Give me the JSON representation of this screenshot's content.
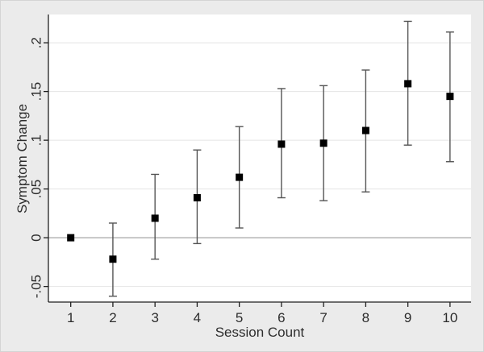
{
  "figure": {
    "type": "coefficient-plot"
  },
  "colors": {
    "background": "#ebebeb",
    "plot_background": "#ffffff",
    "gridline": "#e4e4e4",
    "zero_line": "#a6a6a6",
    "axis": "#1f1f1f",
    "error_bar": "#545454",
    "marker": "#000000",
    "text": "#2d2d2d"
  },
  "chart_data": {
    "type": "scatter",
    "subtype": "point-estimates-with-confidence-intervals",
    "title": "",
    "xlabel": "Session Count",
    "ylabel": "Symptom Change",
    "x": [
      1,
      2,
      3,
      4,
      5,
      6,
      7,
      8,
      9,
      10
    ],
    "x_tick_labels": [
      "1",
      "2",
      "3",
      "4",
      "5",
      "6",
      "7",
      "8",
      "9",
      "10"
    ],
    "y_ticks": [
      {
        "value": 0.2,
        "label": ".2"
      },
      {
        "value": 0.15,
        "label": ".15"
      },
      {
        "value": 0.1,
        "label": ".1"
      },
      {
        "value": 0.05,
        "label": ".05"
      },
      {
        "value": 0,
        "label": "0"
      },
      {
        "value": -0.05,
        "label": "-.05"
      }
    ],
    "series": [
      {
        "name": "Symptom Change estimate",
        "marker": "square",
        "values": [
          0,
          -0.022,
          0.02,
          0.041,
          0.062,
          0.096,
          0.097,
          0.11,
          0.158,
          0.145
        ],
        "ci_low": [
          null,
          -0.06,
          -0.022,
          -0.006,
          0.01,
          0.041,
          0.038,
          0.047,
          0.095,
          0.078
        ],
        "ci_high": [
          null,
          0.015,
          0.065,
          0.09,
          0.114,
          0.153,
          0.156,
          0.172,
          0.222,
          0.211
        ]
      }
    ],
    "xlim": [
      0.47,
      10.5
    ],
    "ylim": [
      -0.066,
      0.229
    ],
    "grid": true,
    "zero_line_value": 0,
    "legend": "none"
  }
}
